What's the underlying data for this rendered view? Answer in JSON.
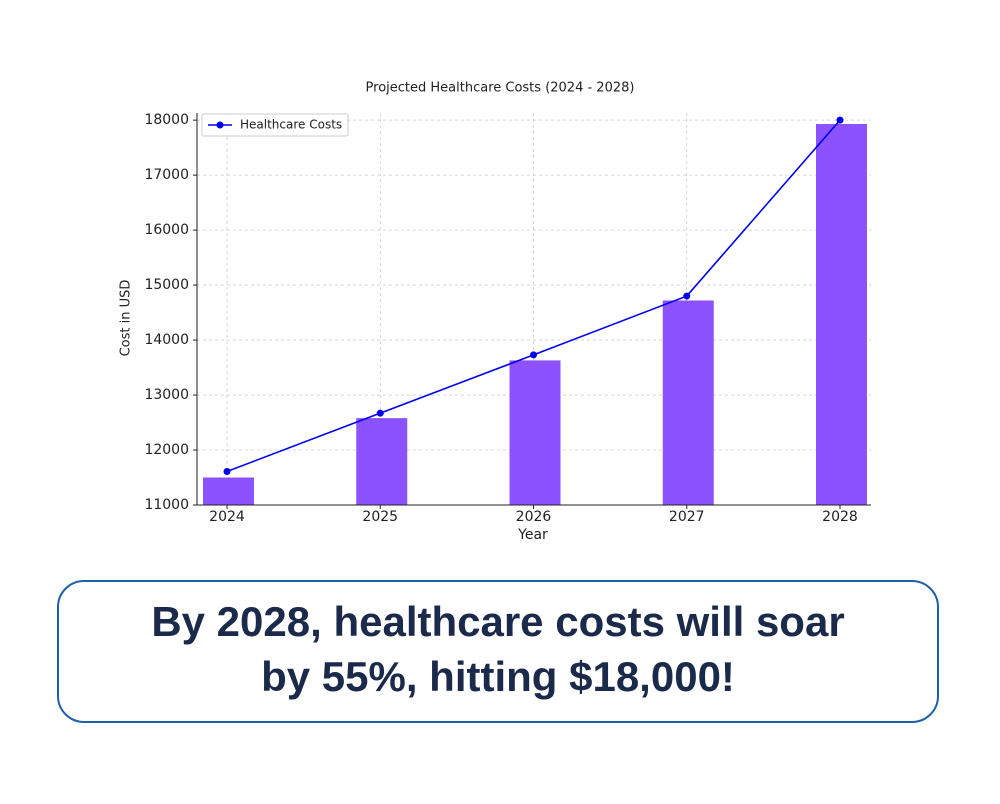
{
  "chart_data": {
    "type": "bar",
    "title": "Projected Healthcare Costs (2024 - 2028)",
    "x_label": "Year",
    "y_label": "Cost in USD",
    "categories": [
      "2024",
      "2025",
      "2026",
      "2027",
      "2028"
    ],
    "series": [
      {
        "type": "bar",
        "color": "#8c52ff",
        "values": [
          11500,
          12580,
          13630,
          14720,
          17930
        ]
      },
      {
        "type": "line",
        "name": "Healthcare Costs",
        "color": "#0000ee",
        "values": [
          11610,
          12670,
          13730,
          14800,
          18000
        ]
      }
    ],
    "ylim": [
      11000,
      18130
    ],
    "yticks": [
      11000,
      12000,
      13000,
      14000,
      15000,
      16000,
      17000,
      18000
    ],
    "grid": true,
    "legend": "upper-left"
  },
  "caption": {
    "lines": [
      "By 2028, healthcare costs will soar",
      "by 55%, hitting $18,000!"
    ]
  }
}
